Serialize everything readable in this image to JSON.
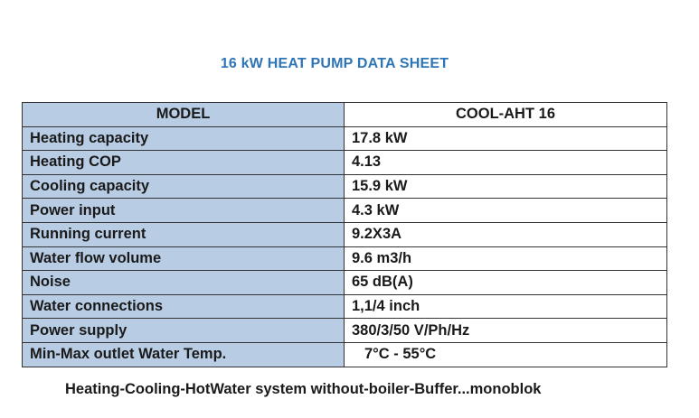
{
  "title": "16 kW HEAT PUMP DATA SHEET",
  "header": {
    "label": "MODEL",
    "value": "COOL-AHT  16"
  },
  "rows": [
    {
      "label": "Heating capacity",
      "value": "17.8 kW"
    },
    {
      "label": "Heating COP",
      "value": "4.13"
    },
    {
      "label": "Cooling capacity",
      "value": "15.9 kW"
    },
    {
      "label": "Power input",
      "value": "4.3 kW"
    },
    {
      "label": "Running current",
      "value": "9.2X3A"
    },
    {
      "label": "Water flow volume",
      "value": "9.6 m3/h"
    },
    {
      "label": "Noise",
      "value": "65 dB(A)"
    },
    {
      "label": "Water connections",
      "value": "1,1/4 inch"
    },
    {
      "label": "Power supply",
      "value": "380/3/50  V/Ph/Hz"
    },
    {
      "label": "Min-Max outlet Water Temp.",
      "value": "7°C - 55°C"
    }
  ],
  "footer": "Heating-Cooling-HotWater  system without-boiler-Buffer...monoblok",
  "colors": {
    "title": "#2e75b6",
    "label_bg": "#b8cce4",
    "border": "#333333"
  }
}
